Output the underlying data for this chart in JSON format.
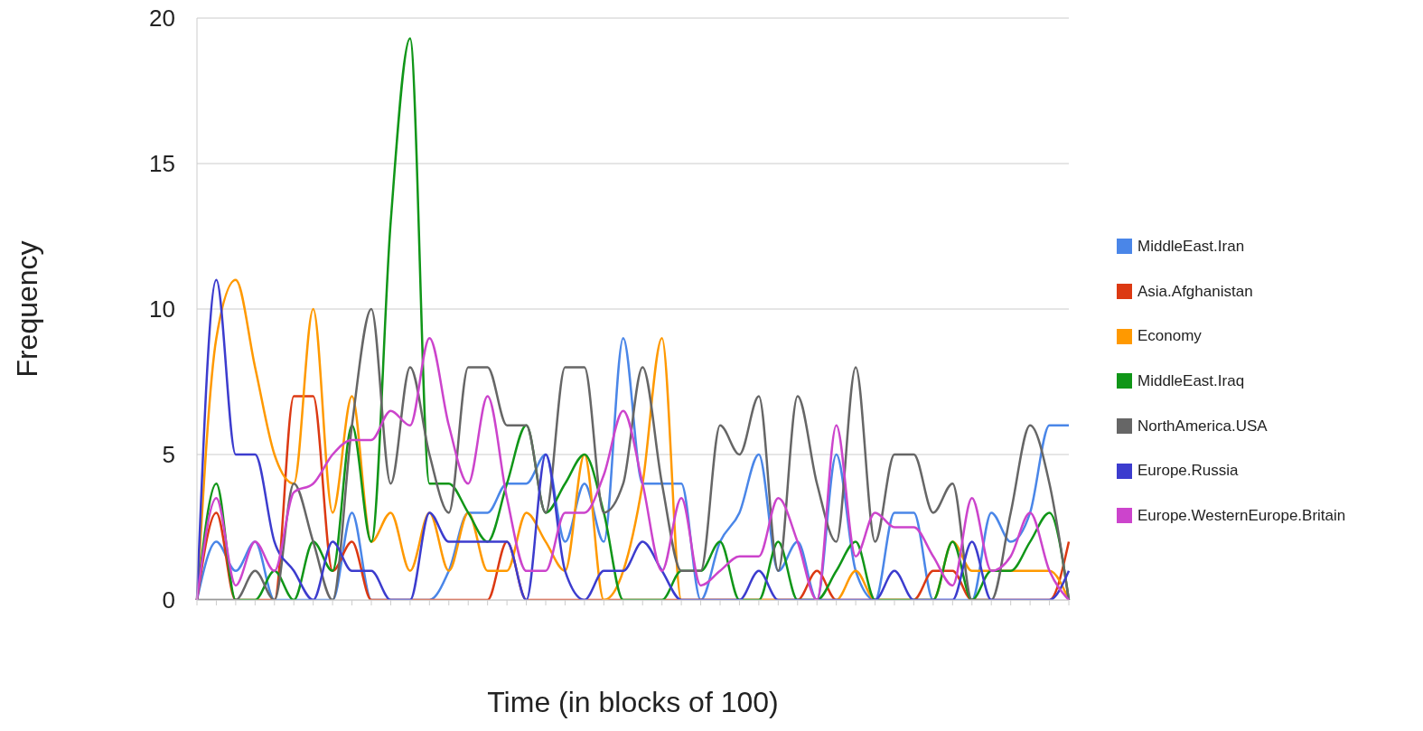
{
  "chart_data": {
    "type": "line",
    "xlabel": "Time (in blocks of 100)",
    "ylabel": "Frequency",
    "categories": [
      null,
      null,
      null,
      null,
      null,
      null,
      null,
      null,
      null,
      null,
      null,
      null,
      null,
      null,
      null,
      null,
      null,
      null,
      null,
      null,
      null,
      null,
      null,
      null,
      null,
      null,
      null,
      null,
      null,
      null,
      null,
      null,
      null,
      null,
      null,
      null,
      null,
      null,
      null,
      null,
      null,
      null,
      null,
      null,
      null,
      null
    ],
    "ylim": [
      0,
      20
    ],
    "yticks": [
      0,
      5,
      10,
      15,
      20
    ],
    "grid": "y",
    "legend": "right",
    "marker": "none",
    "line_style": "solid",
    "series": [
      {
        "name": "MiddleEast.Iran",
        "color": "#4a86e8",
        "values": [
          0,
          2,
          1,
          2,
          0,
          0,
          0,
          0,
          3,
          0,
          0,
          0,
          0,
          1,
          3,
          3,
          4,
          4,
          5,
          2,
          4,
          2,
          9,
          4,
          4,
          4,
          0,
          2,
          3,
          5,
          1,
          2,
          0,
          5,
          1,
          0,
          3,
          3,
          0,
          0,
          0,
          3,
          2,
          3,
          6,
          6
        ]
      },
      {
        "name": "Asia.Afghanistan",
        "color": "#dc3912",
        "values": [
          0,
          3,
          0,
          0,
          0,
          7,
          7,
          1,
          2,
          0,
          0,
          0,
          0,
          0,
          0,
          0,
          2,
          0,
          0,
          0,
          0,
          0,
          0,
          0,
          0,
          0,
          0,
          0,
          0,
          0,
          0,
          0,
          1,
          0,
          0,
          0,
          0,
          0,
          1,
          1,
          0,
          0,
          0,
          0,
          0,
          2
        ]
      },
      {
        "name": "Economy",
        "color": "#ff9900",
        "values": [
          0,
          9,
          11,
          8,
          5,
          4,
          10,
          3,
          7,
          2,
          3,
          1,
          3,
          1,
          3,
          1,
          1,
          3,
          2,
          1,
          5,
          0,
          1,
          4,
          9,
          0,
          0,
          0,
          0,
          0,
          0,
          0,
          0,
          0,
          1,
          0,
          0,
          0,
          0,
          2,
          1,
          1,
          1,
          1,
          1,
          0
        ]
      },
      {
        "name": "MiddleEast.Iraq",
        "color": "#109618",
        "values": [
          0,
          4,
          0,
          0,
          1,
          0,
          2,
          1,
          6,
          2,
          13,
          19.3,
          4,
          4,
          3,
          2,
          4,
          6,
          3,
          4,
          5,
          3,
          0,
          0,
          0,
          1,
          1,
          2,
          0,
          0,
          2,
          0,
          0,
          1,
          2,
          0,
          0,
          0,
          0,
          2,
          0,
          1,
          1,
          2,
          3,
          0
        ]
      },
      {
        "name": "NorthAmerica.USA",
        "color": "#666666",
        "values": [
          0,
          0,
          0,
          1,
          0,
          4,
          2,
          0,
          6,
          10,
          4,
          8,
          5,
          3,
          8,
          8,
          6,
          6,
          3,
          8,
          8,
          3,
          4,
          8,
          4,
          1,
          1,
          6,
          5,
          7,
          1,
          7,
          4,
          2,
          8,
          2,
          5,
          5,
          3,
          4,
          0,
          0,
          3,
          6,
          4,
          0
        ]
      },
      {
        "name": "Europe.Russia",
        "color": "#3c3cce",
        "values": [
          0,
          11,
          5,
          5,
          2,
          1,
          0,
          2,
          1,
          1,
          0,
          0,
          3,
          2,
          2,
          2,
          2,
          0,
          5,
          1,
          0,
          1,
          1,
          2,
          1,
          0,
          0,
          0,
          0,
          1,
          0,
          0,
          0,
          0,
          0,
          0,
          1,
          0,
          0,
          0,
          2,
          0,
          0,
          0,
          0,
          1
        ]
      },
      {
        "name": "Europe.WesternEurope.Britain",
        "color": "#cc44cc",
        "values": [
          0,
          3.5,
          0.5,
          2,
          1,
          3.7,
          4,
          5,
          5.5,
          5.5,
          6.5,
          6,
          9,
          6,
          4,
          7,
          3.5,
          1,
          1,
          3,
          3,
          4.3,
          6.5,
          4,
          1,
          3.5,
          0.5,
          1,
          1.5,
          1.5,
          3.5,
          2,
          0,
          6,
          1.5,
          3,
          2.5,
          2.5,
          1.5,
          0.5,
          3.5,
          1,
          1.5,
          3,
          1,
          0
        ]
      }
    ]
  }
}
